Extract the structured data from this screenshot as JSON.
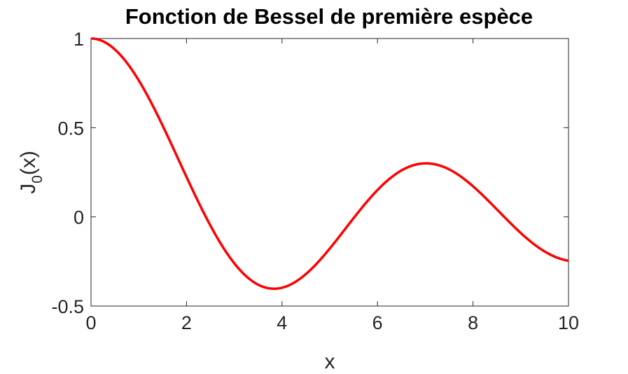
{
  "chart_data": {
    "type": "line",
    "title": "Fonction de Bessel de première espèce",
    "xlabel": "x",
    "ylabel_main": "J",
    "ylabel_subscript": "0",
    "ylabel_tail": "(x)",
    "xlim": [
      0,
      10
    ],
    "ylim": [
      -0.5,
      1
    ],
    "xticks": [
      "0",
      "2",
      "4",
      "6",
      "8",
      "10"
    ],
    "yticks": [
      "-0.5",
      "0",
      "0.5",
      "1"
    ],
    "grid": false,
    "series": [
      {
        "color": "#ff0000",
        "function": "besselj0",
        "x_range": [
          0,
          10
        ]
      }
    ]
  }
}
